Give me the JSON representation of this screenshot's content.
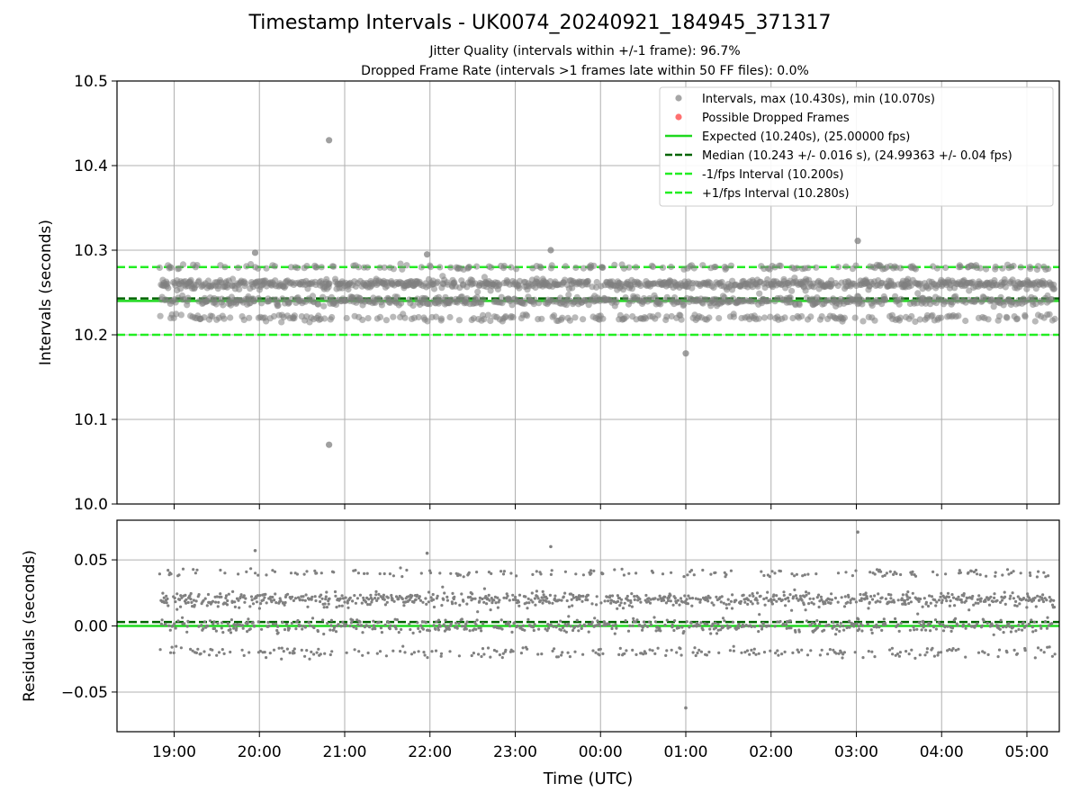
{
  "title": "Timestamp Intervals - UK0074_20240921_184945_371317",
  "subtitle1": "Jitter Quality (intervals within +/-1 frame): 96.7%",
  "subtitle2": "Dropped Frame Rate (intervals >1 frames late within 50 FF files): 0.0%",
  "colors": {
    "points": "#808080",
    "dropped": "#ff3333",
    "expected": "#1ed81e",
    "median": "#006400",
    "interval": "#22ee22",
    "grid": "#b0b0b0"
  },
  "chart_data": [
    {
      "type": "scatter",
      "panel": "top",
      "ylabel": "Intervals (seconds)",
      "xlabel": "",
      "ylim": [
        10.0,
        10.5
      ],
      "yticks": [
        "10.0",
        "10.1",
        "10.2",
        "10.3",
        "10.4",
        "10.5"
      ],
      "grid": true,
      "legend_placement": "top-right",
      "legend": [
        {
          "label": "Intervals, max (10.430s), min (10.070s)",
          "kind": "marker",
          "color": "#808080"
        },
        {
          "label": "Possible Dropped Frames",
          "kind": "marker",
          "color": "#ff3333"
        },
        {
          "label": "Expected (10.240s), (25.00000 fps)",
          "kind": "solid",
          "color": "#1ed81e"
        },
        {
          "label": "Median (10.243 +/- 0.016 s), (24.99363 +/- 0.04 fps)",
          "kind": "dashed",
          "color": "#006400"
        },
        {
          "label": "-1/fps Interval (10.200s)",
          "kind": "dashed",
          "color": "#22ee22"
        },
        {
          "label": "+1/fps Interval (10.280s)",
          "kind": "dashed",
          "color": "#22ee22"
        }
      ],
      "lines": [
        {
          "name": "expected",
          "y": 10.24,
          "style": "solid",
          "color": "#1ed81e"
        },
        {
          "name": "median",
          "y": 10.243,
          "style": "dashed",
          "color": "#006400"
        },
        {
          "name": "minus",
          "y": 10.2,
          "style": "dashed",
          "color": "#22ee22"
        },
        {
          "name": "plus",
          "y": 10.28,
          "style": "dashed",
          "color": "#22ee22"
        }
      ],
      "series": {
        "x_range_hours": [
          18.83,
          29.33
        ],
        "bands": [
          {
            "y": 10.26,
            "weight": 0.44,
            "spread": 0.005
          },
          {
            "y": 10.24,
            "weight": 0.31,
            "spread": 0.005
          },
          {
            "y": 10.22,
            "weight": 0.13,
            "spread": 0.004
          },
          {
            "y": 10.28,
            "weight": 0.09,
            "spread": 0.003
          },
          {
            "y": 10.25,
            "weight": 0.03,
            "spread": 0.02
          }
        ],
        "outliers": [
          {
            "x": "20:49",
            "y": 10.43
          },
          {
            "x": "20:49",
            "y": 10.07
          },
          {
            "x": "01:00",
            "y": 10.178
          },
          {
            "x": "03:01",
            "y": 10.311
          },
          {
            "x": "23:25",
            "y": 10.3
          },
          {
            "x": "19:57",
            "y": 10.297
          },
          {
            "x": "21:58",
            "y": 10.295
          }
        ]
      }
    },
    {
      "type": "scatter",
      "panel": "bottom",
      "ylabel": "Residuals (seconds)",
      "xlabel": "Time (UTC)",
      "ylim": [
        -0.08,
        0.08
      ],
      "yticks": [
        {
          "v": 0.05,
          "label": "0.05"
        },
        {
          "v": 0.0,
          "label": "0.00"
        },
        {
          "v": -0.05,
          "label": "−0.05"
        }
      ],
      "xticks": [
        "19:00",
        "20:00",
        "21:00",
        "22:00",
        "23:00",
        "00:00",
        "01:00",
        "02:00",
        "03:00",
        "04:00",
        "05:00"
      ],
      "xlim_hours": [
        18.33,
        29.38
      ],
      "grid": true,
      "lines": [
        {
          "name": "zero",
          "y": 0.0,
          "style": "solid",
          "color": "#1ed81e"
        },
        {
          "name": "median-residual",
          "y": 0.003,
          "style": "dashed",
          "color": "#006400"
        }
      ],
      "outliers": [
        {
          "x": "03:01",
          "y": 0.071
        },
        {
          "x": "01:00",
          "y": -0.062
        },
        {
          "x": "23:25",
          "y": 0.06
        },
        {
          "x": "19:57",
          "y": 0.057
        },
        {
          "x": "21:58",
          "y": 0.055
        }
      ]
    }
  ]
}
